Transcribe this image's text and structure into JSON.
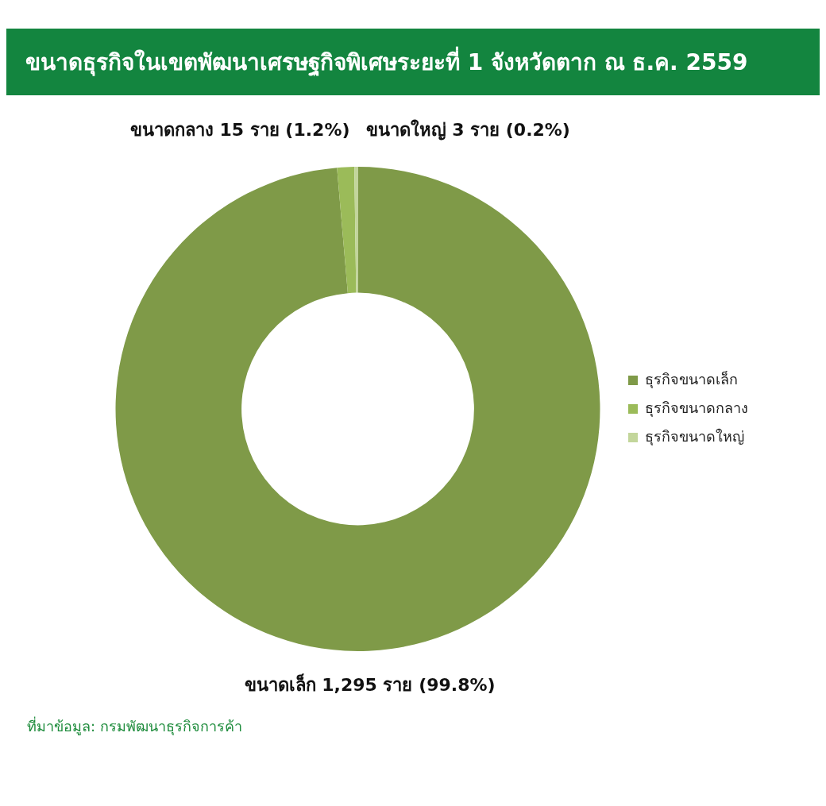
{
  "chart_data": {
    "type": "donut",
    "title": "ขนาดธุรกิจในเขตพัฒนาเศรษฐกิจพิเศษระยะที่ 1 จังหวัดตาก ณ ธ.ค. 2559",
    "categories": [
      "ธุรกิจขนาดเล็ก",
      "ธุรกิจขนาดกลาง",
      "ธุรกิจขนาดใหญ่"
    ],
    "values": [
      1295,
      15,
      3
    ],
    "colors": [
      "#7f9a48",
      "#9bbb59",
      "#c3d69b"
    ],
    "value_labels": [
      "ขนาดเล็ก 1,295 ราย (99.8%)",
      "ขนาดกลาง 15 ราย (1.2%)",
      "ขนาดใหญ่ 3 ราย (0.2%)"
    ],
    "legend": "right",
    "annotations": [
      "ที่มาข้อมูล: กรมพัฒนาธุรกิจการค้า"
    ]
  }
}
